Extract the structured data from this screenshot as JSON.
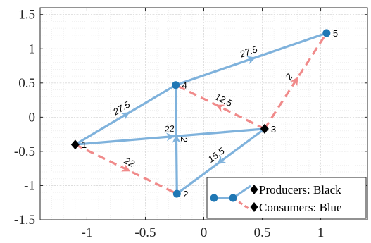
{
  "chart_data": {
    "type": "network",
    "xlim": [
      -1.4,
      1.4
    ],
    "ylim": [
      -1.5,
      1.6
    ],
    "xticks": [
      {
        "value": -1,
        "label": "-1"
      },
      {
        "value": -0.5,
        "label": "-0.5"
      },
      {
        "value": 0,
        "label": "0"
      },
      {
        "value": 0.5,
        "label": "0.5"
      },
      {
        "value": 1,
        "label": "1"
      }
    ],
    "yticks": [
      {
        "value": 1.5,
        "label": "1.5"
      },
      {
        "value": 1,
        "label": "1"
      },
      {
        "value": 0.5,
        "label": "0.5"
      },
      {
        "value": 0,
        "label": "0"
      },
      {
        "value": -0.5,
        "label": "-0.5"
      },
      {
        "value": -1,
        "label": "-1"
      },
      {
        "value": -1.5,
        "label": "-1.5"
      }
    ],
    "grid": true,
    "minor_grid": true,
    "nodes": [
      {
        "id": "1",
        "label": "1",
        "x": -1.1,
        "y": -0.4,
        "role": "producer"
      },
      {
        "id": "2",
        "label": "2",
        "x": -0.23,
        "y": -1.12,
        "role": "consumer"
      },
      {
        "id": "3",
        "label": "3",
        "x": 0.52,
        "y": -0.17,
        "role": "producer"
      },
      {
        "id": "4",
        "label": "4",
        "x": -0.24,
        "y": 0.47,
        "role": "consumer"
      },
      {
        "id": "5",
        "label": "5",
        "x": 1.05,
        "y": 1.23,
        "role": "consumer"
      }
    ],
    "edges": [
      {
        "from": "1",
        "to": "4",
        "label": "27.5",
        "style": "solid",
        "directed": true
      },
      {
        "from": "4",
        "to": "5",
        "label": "27.5",
        "style": "solid",
        "directed": true
      },
      {
        "from": "1",
        "to": "3",
        "label": "22",
        "style": "solid",
        "directed": true
      },
      {
        "from": "2",
        "to": "4",
        "label": "2",
        "style": "solid",
        "directed": true
      },
      {
        "from": "3",
        "to": "2",
        "label": "15.5",
        "style": "solid",
        "directed": true
      },
      {
        "from": "1",
        "to": "2",
        "label": "22",
        "style": "dashed",
        "directed": true
      },
      {
        "from": "3",
        "to": "4",
        "label": "12.5",
        "style": "dashed",
        "directed": true
      },
      {
        "from": "3",
        "to": "5",
        "label": "2",
        "style": "dashed",
        "directed": true
      }
    ],
    "colors": {
      "solid_edge": "#7fb2dc",
      "dashed_edge": "#f08a8a",
      "consumer_node": "#1f77b4",
      "producer_node": "#000000",
      "grid_major": "#d9d9d9",
      "grid_minor": "#ebebeb",
      "axis": "#262626"
    },
    "legend": {
      "position": "bottom-right",
      "entries": [
        {
          "label": "Producers: Black",
          "marker": "diamond"
        },
        {
          "label": "Consumers: Blue",
          "marker": "diamond"
        }
      ]
    }
  }
}
